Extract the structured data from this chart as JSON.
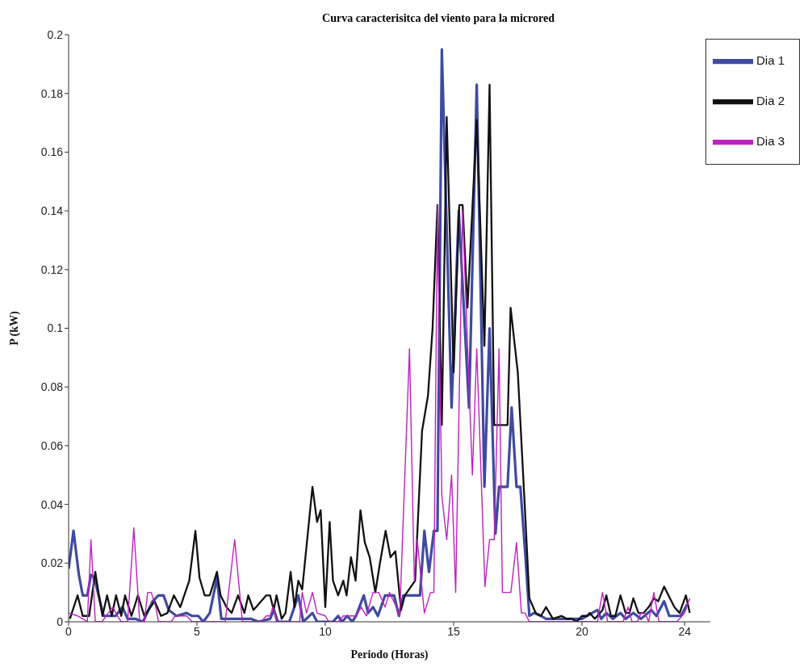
{
  "chart_data": {
    "type": "line",
    "title": "Curva caracterisitca del viento para la microred",
    "xlabel": "Periodo (Horas)",
    "ylabel": "P (kW)",
    "xlim": [
      0,
      25
    ],
    "xticks": [
      0,
      5,
      10,
      15,
      20,
      24
    ],
    "ylim": [
      0,
      0.2
    ],
    "yticks": [
      0,
      0.02,
      0.04,
      0.06,
      0.08,
      0.1,
      0.12,
      0.14,
      0.16,
      0.18,
      0.2
    ],
    "grid": false,
    "legend": "top right",
    "marker": "none",
    "line_style": "solid",
    "series": [
      {
        "name": "Dia 1",
        "color": "#3f4aa0",
        "x": [
          0,
          0.19,
          0.4,
          0.55,
          0.73,
          0.87,
          1.0,
          1.36,
          1.6,
          1.83,
          2.1,
          2.3,
          2.6,
          2.9,
          3.27,
          3.5,
          3.7,
          3.9,
          4.05,
          4.2,
          4.6,
          4.8,
          5.05,
          5.25,
          5.5,
          5.78,
          5.95,
          6.2,
          6.5,
          6.77,
          7.1,
          7.4,
          7.85,
          8.0,
          8.15,
          8.6,
          8.95,
          9.14,
          9.5,
          9.68,
          9.95,
          10.3,
          10.5,
          10.65,
          10.86,
          11.05,
          11.2,
          11.5,
          11.67,
          11.86,
          12.05,
          12.33,
          12.68,
          12.87,
          13.04,
          13.3,
          13.69,
          13.86,
          14.04,
          14.23,
          14.37,
          14.54,
          14.92,
          15.2,
          15.6,
          15.9,
          16.2,
          16.4,
          16.63,
          16.77,
          17.1,
          17.26,
          17.45,
          17.6,
          17.8,
          17.95,
          18.13,
          18.4,
          18.6,
          19.0,
          19.5,
          20.0,
          20.6,
          20.75,
          20.95,
          21.2,
          21.5,
          21.7,
          22.0,
          22.3,
          22.7,
          22.9,
          23.2,
          23.4,
          23.85,
          24.1
        ],
        "values": [
          0.018,
          0.031,
          0.016,
          0.009,
          0.009,
          0.016,
          0.015,
          0.002,
          0.002,
          0.002,
          0.005,
          0.001,
          0.001,
          0,
          0.007,
          0.009,
          0.009,
          0.004,
          0.003,
          0.002,
          0.003,
          0.002,
          0.002,
          0,
          0.003,
          0.015,
          0.001,
          0.001,
          0.001,
          0.001,
          0.001,
          0,
          0.001,
          0.004,
          0,
          0,
          0.009,
          0,
          0.003,
          0,
          0,
          0,
          0.002,
          0,
          0.002,
          0,
          0.002,
          0.009,
          0.003,
          0.005,
          0.002,
          0.009,
          0.009,
          0.002,
          0.009,
          0.009,
          0.009,
          0.031,
          0.017,
          0.031,
          0.031,
          0.195,
          0.073,
          0.14,
          0.073,
          0.183,
          0.046,
          0.1,
          0.03,
          0.046,
          0.046,
          0.073,
          0.046,
          0.046,
          0.022,
          0.002,
          0.003,
          0.002,
          0.001,
          0.001,
          0.001,
          0.001,
          0.004,
          0.001,
          0.003,
          0.001,
          0.003,
          0.001,
          0.003,
          0.001,
          0.004,
          0.002,
          0.007,
          0.002,
          0.002,
          0.006
        ]
      },
      {
        "name": "Dia 2",
        "color": "#111111",
        "x": [
          0.05,
          0.35,
          0.55,
          0.8,
          1.04,
          1.18,
          1.32,
          1.5,
          1.68,
          1.85,
          2.05,
          2.2,
          2.45,
          2.7,
          2.95,
          3.35,
          3.6,
          3.85,
          4.1,
          4.35,
          4.7,
          4.94,
          5.1,
          5.3,
          5.5,
          5.78,
          5.92,
          6.15,
          6.35,
          6.6,
          6.85,
          7.0,
          7.2,
          7.4,
          7.7,
          7.85,
          7.99,
          8.1,
          8.3,
          8.45,
          8.65,
          8.8,
          8.95,
          9.1,
          9.5,
          9.68,
          9.82,
          10.0,
          10.17,
          10.3,
          10.5,
          10.7,
          10.83,
          11.0,
          11.18,
          11.37,
          11.54,
          11.73,
          11.95,
          12.13,
          12.35,
          12.54,
          12.73,
          12.95,
          13.1,
          13.5,
          13.77,
          14.0,
          14.18,
          14.37,
          14.54,
          14.73,
          15.0,
          15.22,
          15.35,
          15.54,
          15.9,
          16.2,
          16.4,
          16.58,
          16.9,
          17.1,
          17.22,
          17.5,
          17.78,
          17.95,
          18.2,
          18.4,
          18.6,
          18.87,
          19.2,
          19.4,
          19.6,
          19.8,
          20.0,
          20.2,
          20.3,
          20.5,
          20.8,
          20.95,
          21.13,
          21.3,
          21.5,
          21.7,
          21.85,
          22.0,
          22.2,
          22.4,
          22.6,
          22.8,
          22.97,
          23.2,
          23.37,
          23.6,
          23.8,
          24.05,
          24.2
        ],
        "values": [
          0.001,
          0.009,
          0.002,
          0.002,
          0.017,
          0.009,
          0.002,
          0.009,
          0.002,
          0.009,
          0.002,
          0.009,
          0.002,
          0.009,
          0.002,
          0.007,
          0.002,
          0.003,
          0.009,
          0.005,
          0.014,
          0.031,
          0.015,
          0.009,
          0.009,
          0.017,
          0.009,
          0.005,
          0.003,
          0.009,
          0.003,
          0.009,
          0.004,
          0.006,
          0.009,
          0.009,
          0.004,
          0.009,
          0.001,
          0.003,
          0.017,
          0.005,
          0.014,
          0.011,
          0.046,
          0.034,
          0.038,
          0.005,
          0.034,
          0.014,
          0.009,
          0.014,
          0.009,
          0.022,
          0.014,
          0.038,
          0.027,
          0.022,
          0.01,
          0.02,
          0.031,
          0.022,
          0.024,
          0.004,
          0.009,
          0.014,
          0.065,
          0.077,
          0.1,
          0.142,
          0.067,
          0.172,
          0.085,
          0.142,
          0.142,
          0.107,
          0.171,
          0.094,
          0.183,
          0.067,
          0.067,
          0.067,
          0.107,
          0.085,
          0.038,
          0.008,
          0.003,
          0.002,
          0.005,
          0.001,
          0.002,
          0.001,
          0.001,
          0,
          0.002,
          0.002,
          0.003,
          0.001,
          0.004,
          0.009,
          0.002,
          0.002,
          0.009,
          0.003,
          0.003,
          0.008,
          0.003,
          0.003,
          0.005,
          0.008,
          0.007,
          0.012,
          0.009,
          0.005,
          0.003,
          0.009,
          0.003
        ]
      },
      {
        "name": "Dia 3",
        "color": "#c020c0",
        "x": [
          0,
          0.35,
          0.55,
          0.73,
          0.87,
          1.04,
          1.3,
          1.55,
          1.72,
          1.9,
          2.05,
          2.3,
          2.54,
          2.77,
          2.95,
          3.08,
          3.22,
          3.4,
          3.5,
          4.0,
          4.15,
          4.3,
          4.6,
          4.82,
          6.1,
          6.47,
          6.77,
          7.5,
          7.7,
          7.85,
          7.96,
          8.1,
          9.0,
          9.1,
          9.27,
          9.5,
          9.68,
          10.0,
          10.14,
          10.5,
          10.7,
          11.2,
          11.4,
          11.6,
          11.86,
          12.08,
          12.33,
          12.5,
          12.77,
          12.9,
          13.28,
          13.47,
          13.58,
          13.86,
          14.1,
          14.23,
          14.37,
          14.54,
          14.73,
          14.92,
          15.08,
          15.35,
          15.73,
          15.9,
          16.22,
          16.4,
          16.58,
          16.77,
          16.9,
          17.23,
          17.45,
          17.64,
          17.78,
          17.95,
          20.6,
          20.8,
          21.0,
          21.6,
          21.8,
          21.95,
          22.15,
          22.3,
          22.45,
          22.6,
          22.8,
          23.0,
          23.7,
          24.0,
          24.2
        ],
        "values": [
          0.003,
          0.002,
          0.001,
          0,
          0.028,
          0,
          0,
          0.003,
          0.005,
          0.002,
          0,
          0,
          0.032,
          0,
          0,
          0.01,
          0.01,
          0.005,
          0,
          0,
          0.002,
          0.002,
          0.002,
          0,
          0,
          0.028,
          0,
          0,
          0.002,
          0.002,
          0.005,
          0,
          0,
          0.01,
          0.003,
          0.01,
          0.003,
          0.002,
          0,
          0,
          0.002,
          0.002,
          0.005,
          0.002,
          0.01,
          0.01,
          0.005,
          0.01,
          0.005,
          0.002,
          0.093,
          0.014,
          0.028,
          0.003,
          0.01,
          0.01,
          0.142,
          0.043,
          0.028,
          0.05,
          0.01,
          0.14,
          0.05,
          0.093,
          0.012,
          0.028,
          0.028,
          0.093,
          0.01,
          0.01,
          0.027,
          0.003,
          0.003,
          0,
          0,
          0.01,
          0,
          0,
          0.005,
          0,
          0,
          0.003,
          0.003,
          0,
          0.01,
          0,
          0,
          0.003,
          0.008
        ]
      }
    ]
  }
}
